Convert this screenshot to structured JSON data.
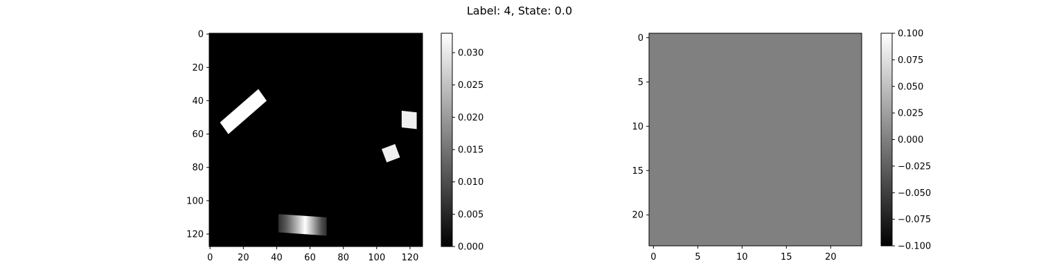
{
  "figure": {
    "suptitle": "Label: 4, State: 0.0"
  },
  "chart_data": [
    {
      "type": "heatmap",
      "title": "",
      "xlabel": "",
      "ylabel": "",
      "colormap": "gray",
      "shape": [
        128,
        128
      ],
      "xlim": [
        -0.5,
        127.5
      ],
      "ylim": [
        127.5,
        -0.5
      ],
      "xticks": [
        0,
        20,
        40,
        60,
        80,
        100,
        120
      ],
      "yticks": [
        0,
        20,
        40,
        60,
        80,
        100,
        120
      ],
      "background_value": 0.0,
      "colorbar": {
        "range": [
          0.0,
          0.033
        ],
        "ticks": [
          "0.000",
          "0.005",
          "0.010",
          "0.015",
          "0.020",
          "0.025",
          "0.030"
        ],
        "tick_values": [
          0.0,
          0.005,
          0.01,
          0.015,
          0.02,
          0.025,
          0.03
        ]
      },
      "objects": [
        {
          "name": "rotated-bar-upper-left",
          "value": 0.033,
          "corners": [
            [
              6,
              53
            ],
            [
              11,
              60
            ],
            [
              34,
              40
            ],
            [
              29,
              33
            ]
          ]
        },
        {
          "name": "square-right",
          "value": 0.031,
          "corners": [
            [
              115,
              46
            ],
            [
              124,
              47
            ],
            [
              124,
              57
            ],
            [
              115,
              56
            ]
          ]
        },
        {
          "name": "square-lower-right",
          "value": 0.031,
          "corners": [
            [
              103,
              69
            ],
            [
              111,
              66
            ],
            [
              114,
              74
            ],
            [
              106,
              77
            ]
          ]
        },
        {
          "name": "gradient-bar-bottom",
          "value_range": [
            0.006,
            0.033
          ],
          "corners": [
            [
              41,
              108
            ],
            [
              70,
              110
            ],
            [
              70,
              121
            ],
            [
              41,
              119
            ]
          ],
          "gradient_stops": [
            {
              "x": 41,
              "value": 0.006
            },
            {
              "x": 46,
              "value": 0.012
            },
            {
              "x": 53,
              "value": 0.025
            },
            {
              "x": 57,
              "value": 0.033
            },
            {
              "x": 62,
              "value": 0.022
            },
            {
              "x": 67,
              "value": 0.01
            },
            {
              "x": 70,
              "value": 0.006
            }
          ]
        }
      ]
    },
    {
      "type": "heatmap",
      "title": "",
      "xlabel": "",
      "ylabel": "",
      "colormap": "gray",
      "shape": [
        24,
        24
      ],
      "xlim": [
        -0.5,
        23.5
      ],
      "ylim": [
        23.5,
        -0.5
      ],
      "xticks": [
        0,
        5,
        10,
        15,
        20
      ],
      "yticks": [
        0,
        5,
        10,
        15,
        20
      ],
      "uniform_value": 0.0,
      "colorbar": {
        "range": [
          -0.1,
          0.1
        ],
        "ticks": [
          "−0.100",
          "−0.075",
          "−0.050",
          "−0.025",
          "0.000",
          "0.025",
          "0.050",
          "0.075",
          "0.100"
        ],
        "tick_values": [
          -0.1,
          -0.075,
          -0.05,
          -0.025,
          0.0,
          0.025,
          0.05,
          0.075,
          0.1
        ]
      },
      "objects": []
    }
  ]
}
